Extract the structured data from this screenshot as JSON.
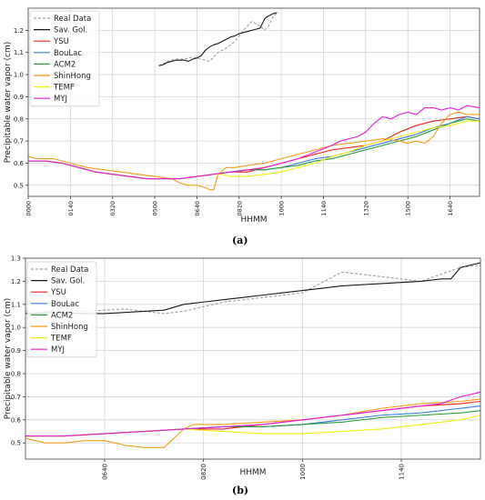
{
  "figure": {
    "label_a": "(a)",
    "label_b": "(b)"
  },
  "chart_data": [
    {
      "type": "line",
      "panel_label": "(a)",
      "title": "",
      "xlabel": "HHMM",
      "ylabel": "Precipitable water vapor (cm)",
      "x_unit": "minutes_of_day",
      "xlim": [
        0,
        1070
      ],
      "ylim": [
        0.45,
        1.3
      ],
      "x_ticks": [
        0,
        100,
        200,
        300,
        400,
        500,
        600,
        700,
        800,
        900,
        1000
      ],
      "x_tick_labels": [
        "0000",
        "0140",
        "0320",
        "0500",
        "0640",
        "0820",
        "1000",
        "1140",
        "1320",
        "1500",
        "1640"
      ],
      "y_ticks": [
        0.5,
        0.6,
        0.7,
        0.8,
        0.9,
        1.0,
        1.1,
        1.2
      ],
      "y_tick_labels": [
        "0.5",
        "0.6",
        "0.7",
        "0.8",
        "0.9",
        "1.0",
        "1.1",
        "1.2"
      ],
      "grid": true,
      "legend_position": "top-left",
      "series": [
        {
          "name": "Real Data",
          "color": "#a0a0a0",
          "dash": true,
          "x": [
            310,
            330,
            350,
            370,
            390,
            410,
            430,
            450,
            470,
            490,
            510,
            530,
            550,
            560,
            570,
            580,
            590
          ],
          "y": [
            1.04,
            1.06,
            1.07,
            1.07,
            1.08,
            1.07,
            1.06,
            1.1,
            1.12,
            1.15,
            1.2,
            1.24,
            1.22,
            1.2,
            1.22,
            1.26,
            1.28
          ]
        },
        {
          "name": "Sav. Gol.",
          "color": "#1a1a1a",
          "dash": false,
          "x": [
            310,
            320,
            330,
            340,
            350,
            360,
            370,
            380,
            390,
            400,
            410,
            420,
            430,
            440,
            450,
            460,
            470,
            480,
            490,
            500,
            510,
            520,
            530,
            540,
            550,
            560,
            565,
            570,
            580,
            590
          ],
          "y": [
            1.04,
            1.045,
            1.055,
            1.06,
            1.065,
            1.065,
            1.065,
            1.06,
            1.07,
            1.075,
            1.085,
            1.11,
            1.125,
            1.135,
            1.14,
            1.15,
            1.16,
            1.17,
            1.175,
            1.185,
            1.19,
            1.195,
            1.2,
            1.205,
            1.21,
            1.25,
            1.26,
            1.265,
            1.275,
            1.28
          ]
        },
        {
          "name": "YSU",
          "color": "#e8231f",
          "dash": false,
          "x": [
            0,
            40,
            80,
            120,
            160,
            200,
            240,
            280,
            320,
            360,
            400,
            440,
            480,
            520,
            560,
            600,
            640,
            680,
            720,
            760,
            800,
            840,
            880,
            920,
            960,
            1000,
            1040,
            1070
          ],
          "y": [
            0.61,
            0.61,
            0.6,
            0.58,
            0.56,
            0.55,
            0.54,
            0.53,
            0.53,
            0.53,
            0.54,
            0.55,
            0.56,
            0.56,
            0.58,
            0.6,
            0.62,
            0.64,
            0.66,
            0.67,
            0.68,
            0.7,
            0.74,
            0.77,
            0.79,
            0.8,
            0.81,
            0.8
          ]
        },
        {
          "name": "BouLac",
          "color": "#3b7ddd",
          "dash": false,
          "x": [
            0,
            40,
            80,
            120,
            160,
            200,
            240,
            280,
            320,
            360,
            400,
            440,
            480,
            520,
            560,
            600,
            640,
            680,
            720,
            760,
            800,
            840,
            880,
            920,
            960,
            1000,
            1040,
            1070
          ],
          "y": [
            0.61,
            0.61,
            0.6,
            0.58,
            0.56,
            0.55,
            0.54,
            0.53,
            0.53,
            0.53,
            0.54,
            0.55,
            0.56,
            0.57,
            0.57,
            0.58,
            0.6,
            0.62,
            0.63,
            0.65,
            0.67,
            0.69,
            0.71,
            0.73,
            0.76,
            0.78,
            0.81,
            0.8
          ]
        },
        {
          "name": "ACM2",
          "color": "#2a9d3a",
          "dash": false,
          "x": [
            0,
            40,
            80,
            120,
            160,
            200,
            240,
            280,
            320,
            360,
            400,
            440,
            480,
            520,
            560,
            600,
            640,
            680,
            720,
            760,
            800,
            840,
            880,
            920,
            960,
            1000,
            1040,
            1070
          ],
          "y": [
            0.61,
            0.61,
            0.6,
            0.58,
            0.56,
            0.55,
            0.54,
            0.53,
            0.53,
            0.53,
            0.54,
            0.55,
            0.56,
            0.57,
            0.57,
            0.58,
            0.59,
            0.61,
            0.62,
            0.64,
            0.66,
            0.68,
            0.7,
            0.72,
            0.75,
            0.78,
            0.8,
            0.79
          ]
        },
        {
          "name": "ShinHong",
          "color": "#f39c1a",
          "dash": false,
          "x": [
            0,
            20,
            60,
            100,
            140,
            180,
            220,
            260,
            300,
            340,
            360,
            380,
            400,
            420,
            430,
            440,
            450,
            470,
            490,
            520,
            560,
            600,
            640,
            680,
            720,
            760,
            800,
            840,
            880,
            900,
            920,
            940,
            960,
            980,
            1000,
            1020,
            1040,
            1070
          ],
          "y": [
            0.63,
            0.62,
            0.62,
            0.6,
            0.58,
            0.57,
            0.56,
            0.55,
            0.54,
            0.53,
            0.51,
            0.5,
            0.5,
            0.49,
            0.48,
            0.48,
            0.55,
            0.58,
            0.58,
            0.59,
            0.6,
            0.62,
            0.64,
            0.66,
            0.68,
            0.69,
            0.7,
            0.71,
            0.7,
            0.69,
            0.7,
            0.69,
            0.72,
            0.78,
            0.82,
            0.83,
            0.82,
            0.82
          ]
        },
        {
          "name": "TEMF",
          "color": "#f0ee18",
          "dash": false,
          "x": [
            0,
            40,
            80,
            120,
            160,
            200,
            240,
            280,
            320,
            360,
            400,
            440,
            460,
            480,
            520,
            560,
            600,
            640,
            680,
            720,
            760,
            800,
            840,
            880,
            920,
            960,
            1000,
            1040,
            1070
          ],
          "y": [
            0.61,
            0.61,
            0.6,
            0.58,
            0.56,
            0.55,
            0.54,
            0.53,
            0.53,
            0.53,
            0.54,
            0.55,
            0.55,
            0.54,
            0.54,
            0.55,
            0.56,
            0.58,
            0.6,
            0.63,
            0.65,
            0.68,
            0.7,
            0.72,
            0.74,
            0.76,
            0.77,
            0.79,
            0.79
          ]
        },
        {
          "name": "MYJ",
          "color": "#e61ed8",
          "dash": false,
          "x": [
            0,
            40,
            80,
            120,
            160,
            200,
            240,
            280,
            320,
            360,
            400,
            440,
            480,
            520,
            560,
            600,
            640,
            680,
            720,
            740,
            760,
            780,
            800,
            820,
            840,
            860,
            880,
            900,
            920,
            940,
            960,
            980,
            1000,
            1020,
            1040,
            1070
          ],
          "y": [
            0.61,
            0.61,
            0.6,
            0.58,
            0.56,
            0.55,
            0.54,
            0.53,
            0.53,
            0.53,
            0.54,
            0.55,
            0.56,
            0.57,
            0.58,
            0.6,
            0.62,
            0.65,
            0.68,
            0.7,
            0.71,
            0.72,
            0.74,
            0.78,
            0.81,
            0.8,
            0.82,
            0.83,
            0.82,
            0.85,
            0.85,
            0.84,
            0.85,
            0.84,
            0.86,
            0.85
          ]
        }
      ]
    },
    {
      "type": "line",
      "panel_label": "(b)",
      "title": "",
      "xlabel": "HHMM",
      "ylabel": "Precipitable water vapor (cm)",
      "x_unit": "minutes_of_day",
      "xlim": [
        320,
        780
      ],
      "ylim": [
        0.43,
        1.3
      ],
      "x_ticks": [
        400,
        500,
        600,
        700
      ],
      "x_tick_labels": [
        "0640",
        "0820",
        "1000",
        "1140"
      ],
      "y_ticks": [
        0.5,
        0.6,
        0.7,
        0.8,
        0.9,
        1.0,
        1.1,
        1.2,
        1.3
      ],
      "y_tick_labels": [
        "0.5",
        "0.6",
        "0.7",
        "0.8",
        "0.9",
        "1.0",
        "1.1",
        "1.2",
        "1.3"
      ],
      "grid": true,
      "legend_position": "top-left",
      "series": [
        {
          "name": "Real Data",
          "color": "#a0a0a0",
          "dash": true,
          "x": [
            320,
            380,
            420,
            460,
            480,
            520,
            560,
            600,
            640,
            680,
            720,
            760,
            780
          ],
          "y": [
            1.07,
            1.07,
            1.08,
            1.06,
            1.07,
            1.11,
            1.13,
            1.15,
            1.24,
            1.22,
            1.2,
            1.26,
            1.27
          ]
        },
        {
          "name": "Sav. Gol.",
          "color": "#1a1a1a",
          "dash": false,
          "x": [
            320,
            350,
            380,
            400,
            420,
            440,
            460,
            480,
            500,
            520,
            540,
            560,
            580,
            600,
            620,
            640,
            660,
            680,
            700,
            720,
            740,
            750,
            760,
            770,
            780
          ],
          "y": [
            1.06,
            1.065,
            1.06,
            1.06,
            1.065,
            1.07,
            1.075,
            1.1,
            1.11,
            1.12,
            1.13,
            1.14,
            1.15,
            1.16,
            1.17,
            1.18,
            1.185,
            1.19,
            1.195,
            1.2,
            1.21,
            1.21,
            1.26,
            1.27,
            1.28
          ]
        },
        {
          "name": "YSU",
          "color": "#e8231f",
          "dash": false,
          "x": [
            320,
            360,
            400,
            440,
            480,
            520,
            560,
            600,
            640,
            680,
            720,
            760,
            780
          ],
          "y": [
            0.53,
            0.53,
            0.54,
            0.55,
            0.56,
            0.56,
            0.58,
            0.6,
            0.62,
            0.64,
            0.66,
            0.67,
            0.68
          ]
        },
        {
          "name": "BouLac",
          "color": "#3b7ddd",
          "dash": false,
          "x": [
            320,
            360,
            400,
            440,
            480,
            520,
            560,
            600,
            640,
            680,
            720,
            760,
            780
          ],
          "y": [
            0.53,
            0.53,
            0.54,
            0.55,
            0.56,
            0.57,
            0.57,
            0.58,
            0.6,
            0.62,
            0.63,
            0.65,
            0.66
          ]
        },
        {
          "name": "ACM2",
          "color": "#2a9d3a",
          "dash": false,
          "x": [
            320,
            360,
            400,
            440,
            480,
            520,
            560,
            600,
            640,
            680,
            720,
            760,
            780
          ],
          "y": [
            0.53,
            0.53,
            0.54,
            0.55,
            0.56,
            0.57,
            0.57,
            0.58,
            0.59,
            0.61,
            0.62,
            0.63,
            0.64
          ]
        },
        {
          "name": "ShinHong",
          "color": "#f39c1a",
          "dash": false,
          "x": [
            320,
            340,
            360,
            380,
            400,
            420,
            440,
            460,
            470,
            480,
            490,
            520,
            560,
            600,
            640,
            680,
            720,
            760,
            780
          ],
          "y": [
            0.52,
            0.5,
            0.5,
            0.51,
            0.51,
            0.49,
            0.48,
            0.48,
            0.52,
            0.56,
            0.58,
            0.58,
            0.59,
            0.6,
            0.62,
            0.65,
            0.67,
            0.68,
            0.69
          ]
        },
        {
          "name": "TEMF",
          "color": "#f0ee18",
          "dash": false,
          "x": [
            320,
            360,
            400,
            440,
            480,
            520,
            560,
            600,
            640,
            680,
            720,
            760,
            780
          ],
          "y": [
            0.53,
            0.53,
            0.54,
            0.55,
            0.56,
            0.55,
            0.54,
            0.54,
            0.55,
            0.56,
            0.58,
            0.6,
            0.62
          ]
        },
        {
          "name": "MYJ",
          "color": "#e61ed8",
          "dash": false,
          "x": [
            320,
            360,
            400,
            440,
            480,
            520,
            560,
            600,
            640,
            680,
            720,
            740,
            760,
            780
          ],
          "y": [
            0.53,
            0.53,
            0.54,
            0.55,
            0.56,
            0.57,
            0.58,
            0.6,
            0.62,
            0.64,
            0.66,
            0.67,
            0.7,
            0.72
          ]
        }
      ]
    }
  ]
}
